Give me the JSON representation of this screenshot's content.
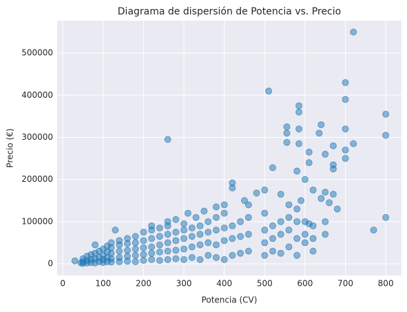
{
  "chart_data": {
    "type": "scatter",
    "title": "Diagrama de dispersión de Potencia vs. Precio",
    "xlabel": "Potencia (CV)",
    "ylabel": "Precio (€)",
    "color": "#1f77b4",
    "grid": true,
    "xlim": [
      -14,
      839
    ],
    "ylim": [
      -27800,
      577000
    ],
    "xticks": [
      0,
      100,
      200,
      300,
      400,
      500,
      600,
      700,
      800
    ],
    "yticks": [
      0,
      100000,
      200000,
      300000,
      400000,
      500000
    ],
    "x": [
      30,
      45,
      50,
      50,
      50,
      60,
      60,
      60,
      70,
      70,
      70,
      80,
      80,
      80,
      80,
      90,
      90,
      90,
      100,
      100,
      100,
      100,
      110,
      110,
      110,
      110,
      120,
      120,
      120,
      120,
      120,
      140,
      140,
      140,
      140,
      140,
      160,
      160,
      160,
      160,
      160,
      180,
      180,
      180,
      180,
      180,
      200,
      200,
      200,
      200,
      200,
      220,
      220,
      220,
      220,
      220,
      240,
      240,
      240,
      240,
      240,
      260,
      260,
      260,
      260,
      260,
      280,
      280,
      280,
      280,
      300,
      300,
      300,
      300,
      300,
      320,
      320,
      320,
      320,
      340,
      340,
      340,
      340,
      360,
      360,
      360,
      360,
      380,
      380,
      380,
      380,
      400,
      400,
      400,
      400,
      420,
      420,
      420,
      440,
      440,
      440,
      460,
      460,
      460,
      500,
      500,
      500,
      500,
      520,
      520,
      520,
      540,
      540,
      540,
      560,
      560,
      560,
      580,
      580,
      580,
      580,
      600,
      600,
      600,
      620,
      620,
      650,
      650,
      720,
      510,
      700,
      700,
      585,
      585,
      555,
      555,
      585,
      640,
      635,
      700,
      800,
      800,
      260,
      555,
      585,
      720,
      700,
      700,
      670,
      650,
      670,
      670,
      610,
      610,
      520,
      580,
      600,
      420,
      420,
      500,
      480,
      540,
      620,
      650,
      670,
      640,
      660,
      680,
      770,
      800,
      590,
      560,
      610,
      620,
      450,
      460,
      400,
      130,
      220,
      260,
      310,
      350,
      380,
      330,
      280
    ],
    "y": [
      7000,
      2000,
      1000,
      5000,
      12000,
      2000,
      8000,
      18000,
      3000,
      10000,
      22000,
      2000,
      12000,
      25000,
      45000,
      5000,
      15000,
      30000,
      3000,
      10000,
      20000,
      35000,
      5000,
      15000,
      28000,
      42000,
      4000,
      12000,
      25000,
      38000,
      50000,
      5000,
      15000,
      30000,
      45000,
      55000,
      6000,
      18000,
      32000,
      48000,
      60000,
      5000,
      20000,
      35000,
      50000,
      65000,
      8000,
      22000,
      38000,
      55000,
      75000,
      10000,
      25000,
      40000,
      60000,
      80000,
      8000,
      28000,
      45000,
      65000,
      85000,
      10000,
      30000,
      50000,
      70000,
      90000,
      12000,
      32000,
      55000,
      75000,
      10000,
      35000,
      60000,
      80000,
      95000,
      15000,
      40000,
      65000,
      85000,
      10000,
      45000,
      70000,
      90000,
      20000,
      50000,
      75000,
      100000,
      15000,
      45000,
      80000,
      110000,
      10000,
      55000,
      85000,
      120000,
      20000,
      60000,
      90000,
      25000,
      65000,
      100000,
      30000,
      70000,
      110000,
      20000,
      50000,
      80000,
      120000,
      30000,
      60000,
      90000,
      25000,
      70000,
      100000,
      40000,
      80000,
      110000,
      20000,
      60000,
      100000,
      130000,
      50000,
      70000,
      100000,
      30000,
      60000,
      70000,
      100000,
      550000,
      410000,
      430000,
      390000,
      375000,
      360000,
      325000,
      310000,
      320000,
      330000,
      310000,
      320000,
      355000,
      305000,
      295000,
      288000,
      285000,
      285000,
      270000,
      250000,
      280000,
      260000,
      235000,
      225000,
      265000,
      240000,
      228000,
      220000,
      200000,
      192000,
      180000,
      175000,
      168000,
      165000,
      175000,
      170000,
      165000,
      155000,
      145000,
      130000,
      80000,
      110000,
      150000,
      140000,
      95000,
      90000,
      150000,
      140000,
      140000,
      80000,
      90000,
      100000,
      120000,
      125000,
      135000,
      110000,
      105000
    ]
  }
}
